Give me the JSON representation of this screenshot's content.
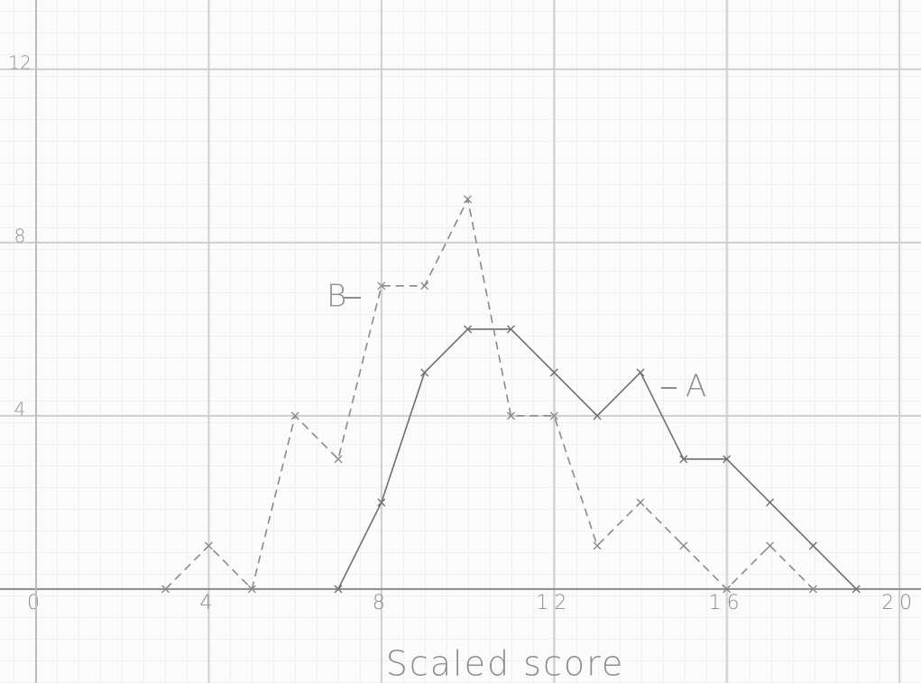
{
  "chart_data": {
    "type": "line",
    "x_label": "Scaled score",
    "x": [
      3,
      4,
      5,
      6,
      7,
      8,
      9,
      10,
      11,
      12,
      13,
      14,
      15,
      16,
      17,
      18,
      19
    ],
    "series": [
      {
        "name": "A",
        "color": "#6f6f6f",
        "dashed": false,
        "values": [
          null,
          null,
          null,
          null,
          0,
          2,
          5,
          6,
          6,
          5,
          4,
          5,
          3,
          3,
          2,
          1,
          0
        ]
      },
      {
        "name": "B",
        "color": "#8a8a8a",
        "dashed": true,
        "values": [
          0,
          1,
          0,
          4,
          3,
          7,
          7,
          9,
          4,
          4,
          1,
          2,
          1,
          0,
          1,
          0,
          null
        ]
      }
    ],
    "xlim": [
      -0.836,
      20.5
    ],
    "ylim": [
      -2.17,
      13.6
    ],
    "xticks": [
      0,
      4,
      8,
      12,
      16,
      20
    ],
    "yticks": [
      4,
      8,
      12
    ],
    "grid": true
  }
}
